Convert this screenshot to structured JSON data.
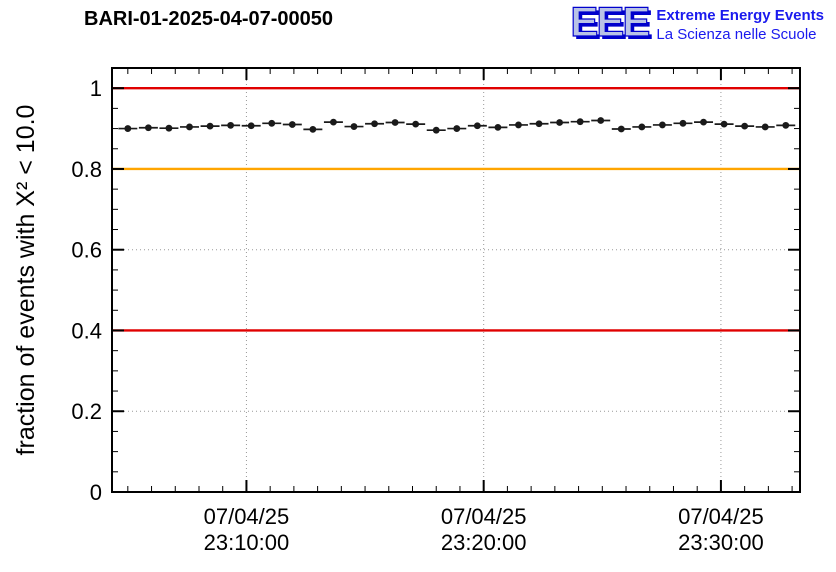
{
  "header": {
    "title": "BARI-01-2025-04-07-00050",
    "logo": {
      "text": "EEE",
      "line1": "Extreme Energy Events",
      "line2": "La Scienza nelle Scuole"
    }
  },
  "chart_data": {
    "type": "scatter",
    "title": "BARI-01-2025-04-07-00050",
    "xlabel": "",
    "ylabel": "fraction of events with X² < 10.0",
    "ylim": [
      0,
      1.05
    ],
    "xlim_seconds": [
      260,
      2000
    ],
    "grid": true,
    "legend": "none",
    "marker_color": "#1a1a1a",
    "grid_color": "#999999",
    "y_ticks": [
      {
        "v": 0,
        "label": "0"
      },
      {
        "v": 0.2,
        "label": "0.2"
      },
      {
        "v": 0.4,
        "label": "0.4"
      },
      {
        "v": 0.6,
        "label": "0.6"
      },
      {
        "v": 0.8,
        "label": "0.8"
      },
      {
        "v": 1.0,
        "label": "1"
      }
    ],
    "y_minor_step": 0.05,
    "x_ticks": [
      {
        "t": 600,
        "label_date": "07/04/25",
        "label_time": "23:10:00"
      },
      {
        "t": 1200,
        "label_date": "07/04/25",
        "label_time": "23:20:00"
      },
      {
        "t": 1800,
        "label_date": "07/04/25",
        "label_time": "23:30:00"
      }
    ],
    "x_minor_step_seconds": 60,
    "reference_lines": [
      {
        "y": 1.0,
        "color": "#e00000"
      },
      {
        "y": 0.8,
        "color": "#ffa500"
      },
      {
        "y": 0.4,
        "color": "#e00000"
      }
    ],
    "bin_half_width_seconds": 24,
    "point_format": [
      "t_seconds_after_23:00:00",
      "fraction"
    ],
    "points": [
      [
        300,
        0.9
      ],
      [
        352,
        0.902
      ],
      [
        404,
        0.901
      ],
      [
        456,
        0.904
      ],
      [
        508,
        0.906
      ],
      [
        560,
        0.908
      ],
      [
        612,
        0.907
      ],
      [
        664,
        0.913
      ],
      [
        716,
        0.91
      ],
      [
        768,
        0.898
      ],
      [
        820,
        0.916
      ],
      [
        872,
        0.905
      ],
      [
        924,
        0.912
      ],
      [
        976,
        0.915
      ],
      [
        1028,
        0.911
      ],
      [
        1080,
        0.896
      ],
      [
        1132,
        0.9
      ],
      [
        1184,
        0.907
      ],
      [
        1236,
        0.903
      ],
      [
        1288,
        0.909
      ],
      [
        1340,
        0.912
      ],
      [
        1392,
        0.915
      ],
      [
        1444,
        0.917
      ],
      [
        1496,
        0.92
      ],
      [
        1548,
        0.899
      ],
      [
        1600,
        0.904
      ],
      [
        1652,
        0.909
      ],
      [
        1704,
        0.913
      ],
      [
        1756,
        0.916
      ],
      [
        1808,
        0.911
      ],
      [
        1860,
        0.906
      ],
      [
        1912,
        0.904
      ],
      [
        1964,
        0.908
      ]
    ]
  }
}
